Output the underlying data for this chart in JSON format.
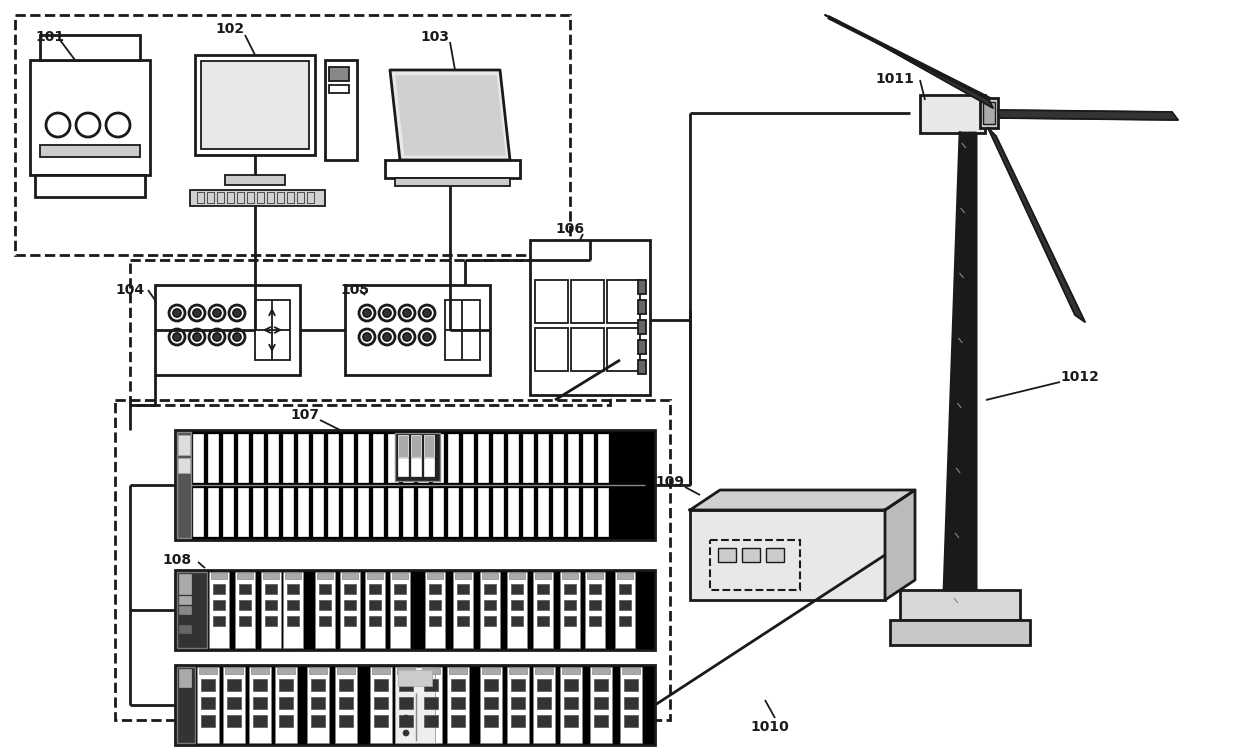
{
  "bg_color": "#ffffff",
  "line_color": "#1a1a1a",
  "fig_width": 12.4,
  "fig_height": 7.52
}
